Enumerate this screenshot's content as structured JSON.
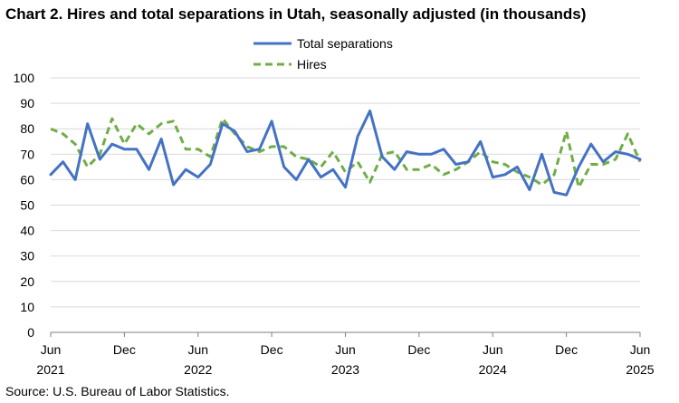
{
  "chart_data": {
    "type": "line",
    "title": "Chart 2. Hires and total separations in Utah, seasonally adjusted (in thousands)",
    "source": "Source: U.S. Bureau of Labor Statistics.",
    "ylim": [
      0,
      100
    ],
    "yticks": [
      0,
      10,
      20,
      30,
      40,
      50,
      60,
      70,
      80,
      90,
      100
    ],
    "grid": "horizontal",
    "legend": "top-center",
    "x": [
      "2021-06",
      "2021-07",
      "2021-08",
      "2021-09",
      "2021-10",
      "2021-11",
      "2021-12",
      "2022-01",
      "2022-02",
      "2022-03",
      "2022-04",
      "2022-05",
      "2022-06",
      "2022-07",
      "2022-08",
      "2022-09",
      "2022-10",
      "2022-11",
      "2022-12",
      "2023-01",
      "2023-02",
      "2023-03",
      "2023-04",
      "2023-05",
      "2023-06",
      "2023-07",
      "2023-08",
      "2023-09",
      "2023-10",
      "2023-11",
      "2023-12",
      "2024-01",
      "2024-02",
      "2024-03",
      "2024-04",
      "2024-05",
      "2024-06",
      "2024-07",
      "2024-08",
      "2024-09",
      "2024-10",
      "2024-11",
      "2024-12",
      "2025-01",
      "2025-02",
      "2025-03",
      "2025-04",
      "2025-05",
      "2025-06"
    ],
    "xtick_labels": [
      {
        "month": "Jun",
        "year": "2021"
      },
      {
        "month": "Dec",
        "year": ""
      },
      {
        "month": "Jun",
        "year": "2022"
      },
      {
        "month": "Dec",
        "year": ""
      },
      {
        "month": "Jun",
        "year": "2023"
      },
      {
        "month": "Dec",
        "year": ""
      },
      {
        "month": "Jun",
        "year": "2024"
      },
      {
        "month": "Dec",
        "year": ""
      },
      {
        "month": "Jun",
        "year": "2025"
      }
    ],
    "series": [
      {
        "name": "Total separations",
        "color": "#4472c4",
        "style": "solid",
        "values": [
          62,
          67,
          60,
          82,
          68,
          74,
          72,
          72,
          64,
          76,
          58,
          64,
          61,
          66,
          82,
          79,
          71,
          72,
          83,
          65,
          60,
          68,
          61,
          64,
          57,
          77,
          87,
          69,
          64,
          71,
          70,
          70,
          72,
          66,
          67,
          75,
          61,
          62,
          65,
          56,
          70,
          55,
          54,
          65,
          74,
          67,
          71,
          70,
          68
        ]
      },
      {
        "name": "Hires",
        "color": "#70ad47",
        "style": "dashed",
        "values": [
          80,
          78,
          74,
          65,
          70,
          84,
          74,
          82,
          78,
          82,
          83,
          72,
          72,
          69,
          84,
          78,
          73,
          71,
          73,
          73,
          69,
          68,
          65,
          71,
          63,
          67,
          59,
          70,
          71,
          64,
          64,
          66,
          62,
          64,
          67,
          71,
          67,
          66,
          63,
          61,
          58,
          62,
          79,
          57,
          66,
          66,
          68,
          78,
          67
        ]
      }
    ]
  }
}
